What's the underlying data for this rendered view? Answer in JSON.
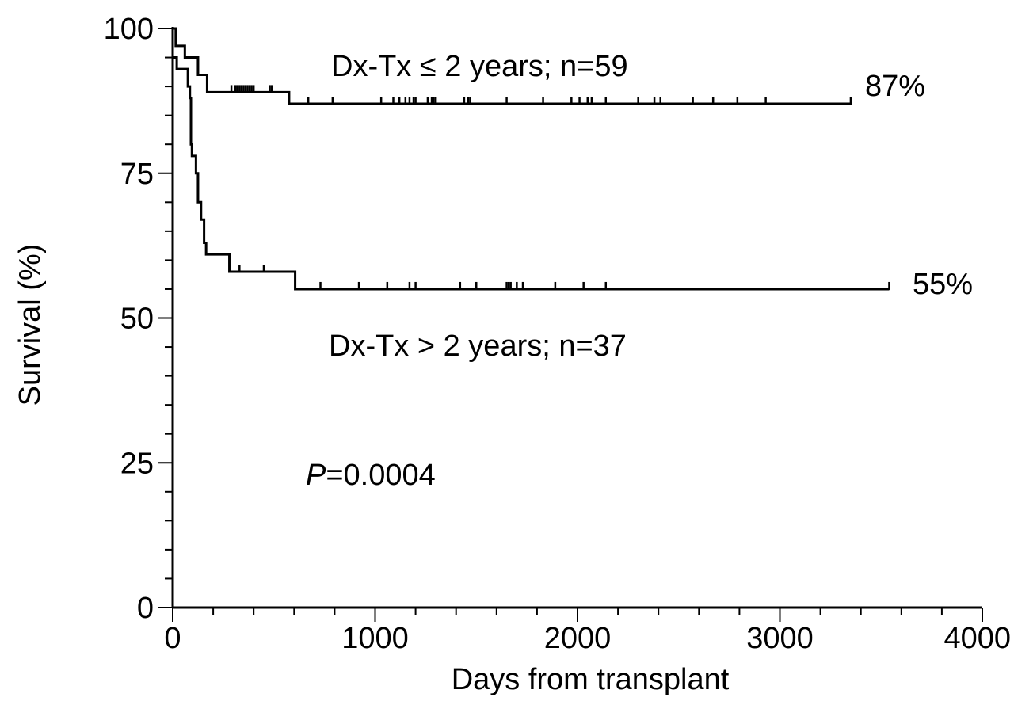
{
  "chart_data": {
    "type": "line",
    "xlabel": "Days from transplant",
    "ylabel": "Survival (%)",
    "xlim": [
      0,
      4000
    ],
    "ylim": [
      0,
      100
    ],
    "x_ticks": [
      0,
      1000,
      2000,
      3000,
      4000
    ],
    "y_ticks": [
      0,
      25,
      50,
      75,
      100
    ],
    "x_tick_labels": [
      "0",
      "1000",
      "2000",
      "3000",
      "4000"
    ],
    "y_tick_labels": [
      "0",
      "25",
      "50",
      "75",
      "100"
    ],
    "x_minor_step": 200,
    "y_minor_step": 5,
    "grid": false,
    "annotation": "=0.0004",
    "annotation_prefix": "P",
    "series": [
      {
        "name": "Dx-Tx ≤ 2 years; n=59",
        "end_label": "87%",
        "steps": [
          [
            0,
            100
          ],
          [
            15,
            97
          ],
          [
            50,
            97
          ],
          [
            60,
            95
          ],
          [
            115,
            95
          ],
          [
            125,
            92
          ],
          [
            160,
            92
          ],
          [
            170,
            89
          ],
          [
            570,
            89
          ],
          [
            575,
            87
          ],
          [
            3350,
            87
          ]
        ],
        "censors": [
          290,
          310,
          320,
          330,
          340,
          350,
          360,
          370,
          380,
          390,
          400,
          480,
          490,
          670,
          790,
          1030,
          1090,
          1120,
          1150,
          1170,
          1190,
          1200,
          1260,
          1280,
          1290,
          1300,
          1440,
          1460,
          1470,
          1650,
          1830,
          1970,
          2010,
          2050,
          2070,
          2140,
          2300,
          2380,
          2410,
          2570,
          2670,
          2790,
          2930,
          3350
        ]
      },
      {
        "name": "Dx-Tx > 2 years; n=37",
        "end_label": "55%",
        "steps": [
          [
            0,
            95
          ],
          [
            20,
            93
          ],
          [
            70,
            93
          ],
          [
            75,
            90
          ],
          [
            85,
            88
          ],
          [
            90,
            80
          ],
          [
            95,
            78
          ],
          [
            110,
            78
          ],
          [
            115,
            75
          ],
          [
            125,
            70
          ],
          [
            140,
            67
          ],
          [
            155,
            63
          ],
          [
            165,
            61
          ],
          [
            270,
            61
          ],
          [
            280,
            58
          ],
          [
            600,
            58
          ],
          [
            605,
            55
          ],
          [
            3540,
            55
          ]
        ],
        "censors": [
          330,
          450,
          730,
          920,
          1060,
          1170,
          1200,
          1420,
          1500,
          1650,
          1660,
          1670,
          1700,
          1730,
          1890,
          2030,
          2140,
          3540
        ]
      }
    ]
  }
}
